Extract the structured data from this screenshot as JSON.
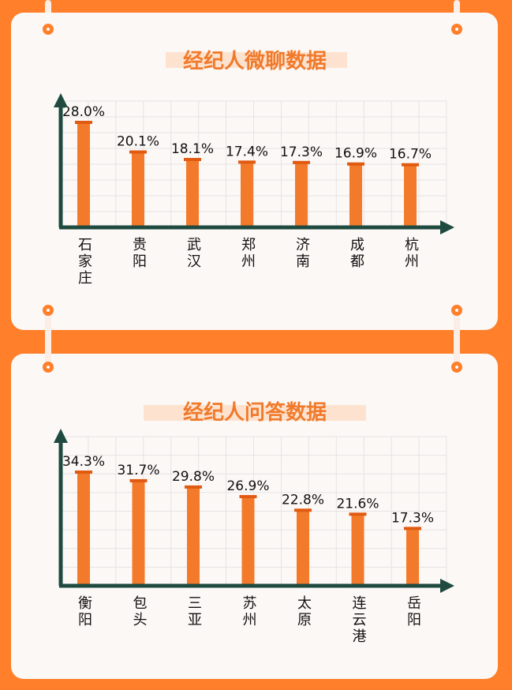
{
  "chart_data": [
    {
      "type": "bar",
      "title": "经纪人微聊数据",
      "categories": [
        "石家庄",
        "贵阳",
        "武汉",
        "郑州",
        "济南",
        "成都",
        "杭州"
      ],
      "values": [
        28.0,
        20.1,
        18.1,
        17.4,
        17.3,
        16.9,
        16.7
      ],
      "labels": [
        "28.0%",
        "20.1%",
        "18.1%",
        "17.4%",
        "17.3%",
        "16.9%",
        "16.7%"
      ],
      "ylim": [
        0,
        30
      ],
      "xlabel": "",
      "ylabel": "",
      "grid": true
    },
    {
      "type": "bar",
      "title": "经纪人问答数据",
      "categories": [
        "衡阳",
        "包头",
        "三亚",
        "苏州",
        "太原",
        "连云港",
        "岳阳"
      ],
      "values": [
        34.3,
        31.7,
        29.8,
        26.9,
        22.8,
        21.6,
        17.3
      ],
      "labels": [
        "34.3%",
        "31.7%",
        "29.8%",
        "26.9%",
        "22.8%",
        "21.6%",
        "17.3%"
      ],
      "ylim": [
        0,
        38
      ],
      "xlabel": "",
      "ylabel": "",
      "grid": true
    }
  ],
  "colors": {
    "background": "#ff7f2a",
    "card": "#fcf8f6",
    "bar": "#f47a2b",
    "bar_cap": "#e05a12",
    "axis": "#1f4a40",
    "title": "#f07a2c",
    "title_highlight": "#fde3cf",
    "grid": "#e4e4e4"
  }
}
